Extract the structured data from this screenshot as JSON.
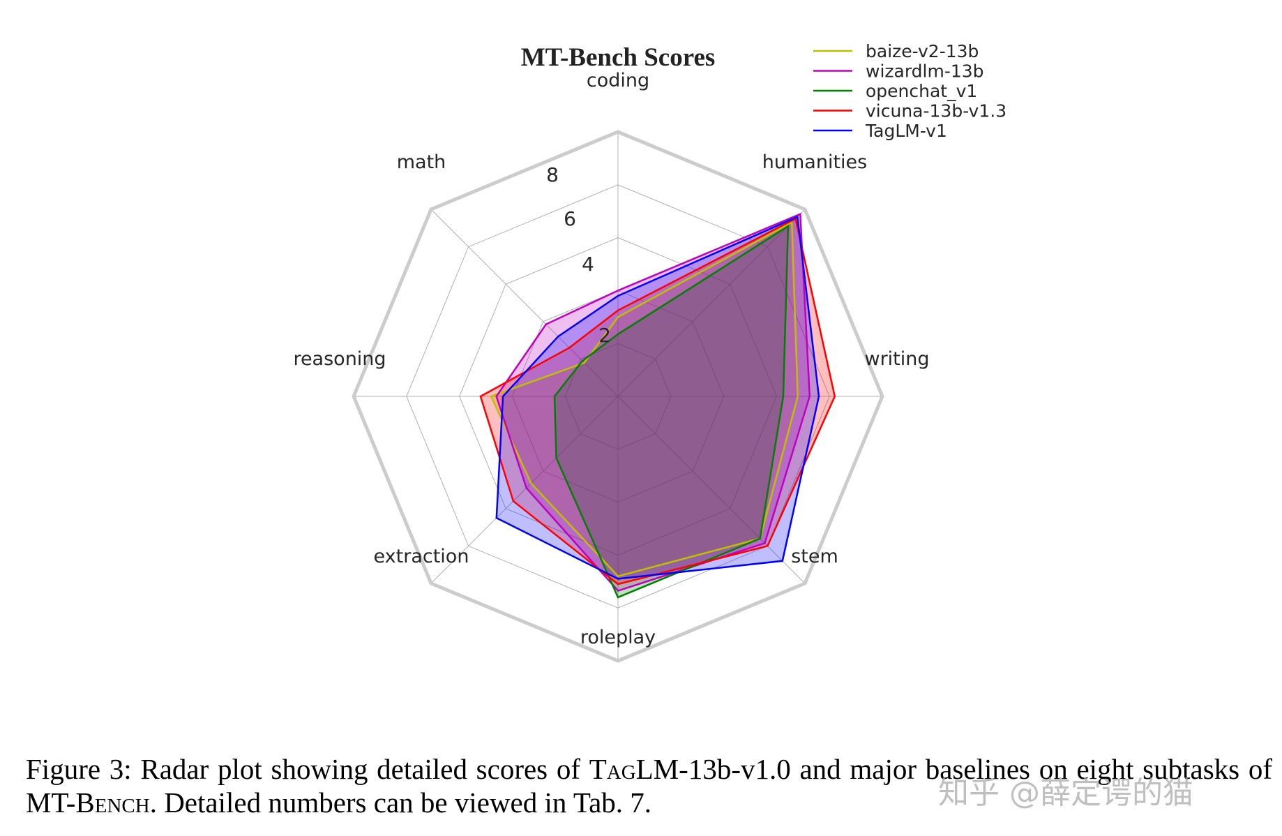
{
  "chart_data": {
    "type": "radar",
    "title": "MT-Bench Scores",
    "axes": [
      "coding",
      "humanities",
      "writing",
      "stem",
      "roleplay",
      "extraction",
      "reasoning",
      "math"
    ],
    "rlim": [
      0,
      10
    ],
    "radial_ticks": [
      "2",
      "4",
      "6",
      "8"
    ],
    "radial_tick_values": [
      2,
      4,
      6,
      8
    ],
    "grid": true,
    "legend_position": "top-right",
    "series": [
      {
        "name": "baize-v2-13b",
        "color": "#bfbf00",
        "values": [
          3.0,
          9.3,
          6.8,
          7.6,
          6.8,
          4.65,
          4.8,
          1.8
        ]
      },
      {
        "name": "wizardlm-13b",
        "color": "#bf00bf",
        "values": [
          4.0,
          9.75,
          7.25,
          7.85,
          7.35,
          4.9,
          4.6,
          3.85
        ]
      },
      {
        "name": "openchat_v1",
        "color": "#008000",
        "values": [
          2.35,
          9.1,
          6.25,
          7.6,
          7.6,
          3.3,
          2.4,
          1.9
        ]
      },
      {
        "name": "vicuna-13b-v1.3",
        "color": "#ff0000",
        "values": [
          3.25,
          9.5,
          8.2,
          8.0,
          7.1,
          5.6,
          5.2,
          2.6
        ]
      },
      {
        "name": "TagLM-v1",
        "color": "#0000ff",
        "values": [
          3.8,
          9.6,
          7.6,
          8.8,
          6.9,
          6.5,
          4.35,
          3.2
        ]
      }
    ]
  },
  "caption": {
    "p1": "Figure 3:  Radar plot showing detailed scores of ",
    "sc1": "TagLM",
    "p2": "-13b-v1.0 and major baselines on eight subtasks of MT-",
    "sc2": "Bench",
    "p3": ". Detailed numbers can be viewed in Tab. 7."
  },
  "watermark": "知乎 @薛定谔的猫"
}
